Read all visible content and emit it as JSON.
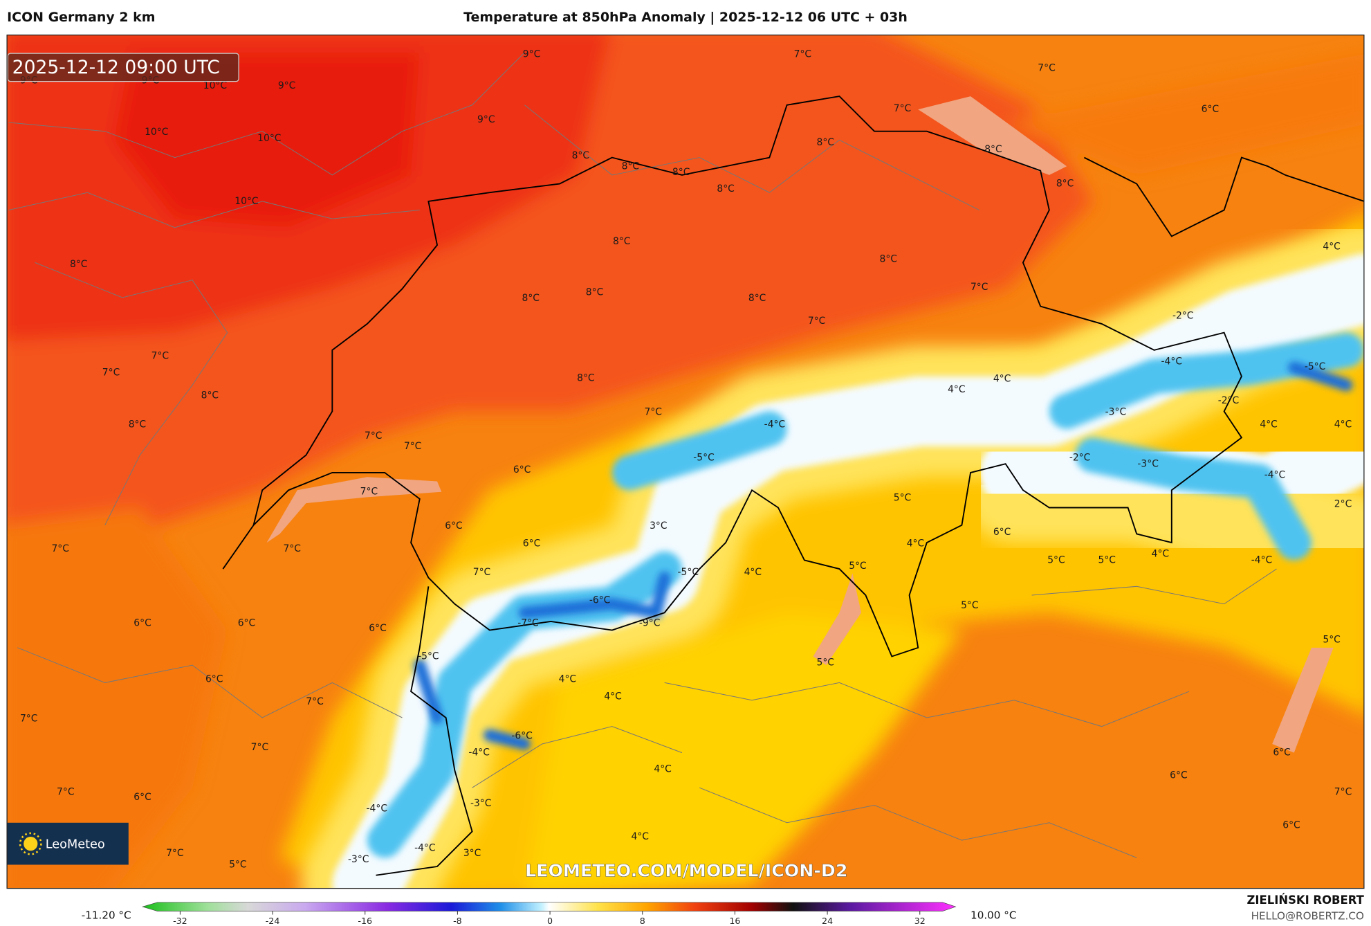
{
  "header": {
    "model": "ICON Germany 2 km",
    "title": "Temperature at 850hPa Anomaly | 2025-12-12 06 UTC + 03h"
  },
  "map": {
    "timestamp": "2025-12-12 09:00 UTC",
    "logo": "LeoMeteo",
    "watermark": "LEOMETEO.COM/MODEL/ICON-D2",
    "contour_labels": [
      "9°C",
      "9°C",
      "10°C",
      "9°C",
      "9°C",
      "7°C",
      "7°C",
      "6°C",
      "10°C",
      "10°C",
      "9°C",
      "7°C",
      "8°C",
      "8°C",
      "8°C",
      "8°C",
      "8°C",
      "8°C",
      "8°C",
      "10°C",
      "8°C",
      "8°C",
      "4°C",
      "8°C",
      "8°C",
      "8°C",
      "8°C",
      "7°C",
      "-2°C",
      "7°C",
      "7°C",
      "7°C",
      "-4°C",
      "-5°C",
      "8°C",
      "8°C",
      "4°C",
      "4°C",
      "-2°C",
      "7°C",
      "-3°C",
      "-4°C",
      "8°C",
      "4°C",
      "4°C",
      "7°C",
      "7°C",
      "-5°C",
      "-2°C",
      "-3°C",
      "6°C",
      "-4°C",
      "7°C",
      "5°C",
      "2°C",
      "6°C",
      "3°C",
      "6°C",
      "6°C",
      "4°C",
      "7°C",
      "7°C",
      "5°C",
      "5°C",
      "4°C",
      "-4°C",
      "7°C",
      "-5°C",
      "4°C",
      "5°C",
      "-6°C",
      "5°C",
      "6°C",
      "6°C",
      "-7°C",
      "-9°C",
      "6°C",
      "5°C",
      "-5°C",
      "5°C",
      "6°C",
      "4°C",
      "7°C",
      "4°C",
      "7°C",
      "-6°C",
      "7°C",
      "-4°C",
      "6°C",
      "4°C",
      "6°C",
      "7°C",
      "6°C",
      "7°C",
      "-3°C",
      "-4°C",
      "6°C",
      "4°C",
      "7°C",
      "3°C",
      "-4°C",
      "5°C",
      "-3°C"
    ]
  },
  "colorbar": {
    "min_label": "-11.20 °C",
    "max_label": "10.00 °C",
    "ticks": [
      -32,
      -24,
      -16,
      -8,
      0,
      8,
      16,
      24,
      32
    ]
  },
  "footer": {
    "author": "ZIELIŃSKI ROBERT",
    "email": "HELLO@ROBERTZ.CO"
  }
}
